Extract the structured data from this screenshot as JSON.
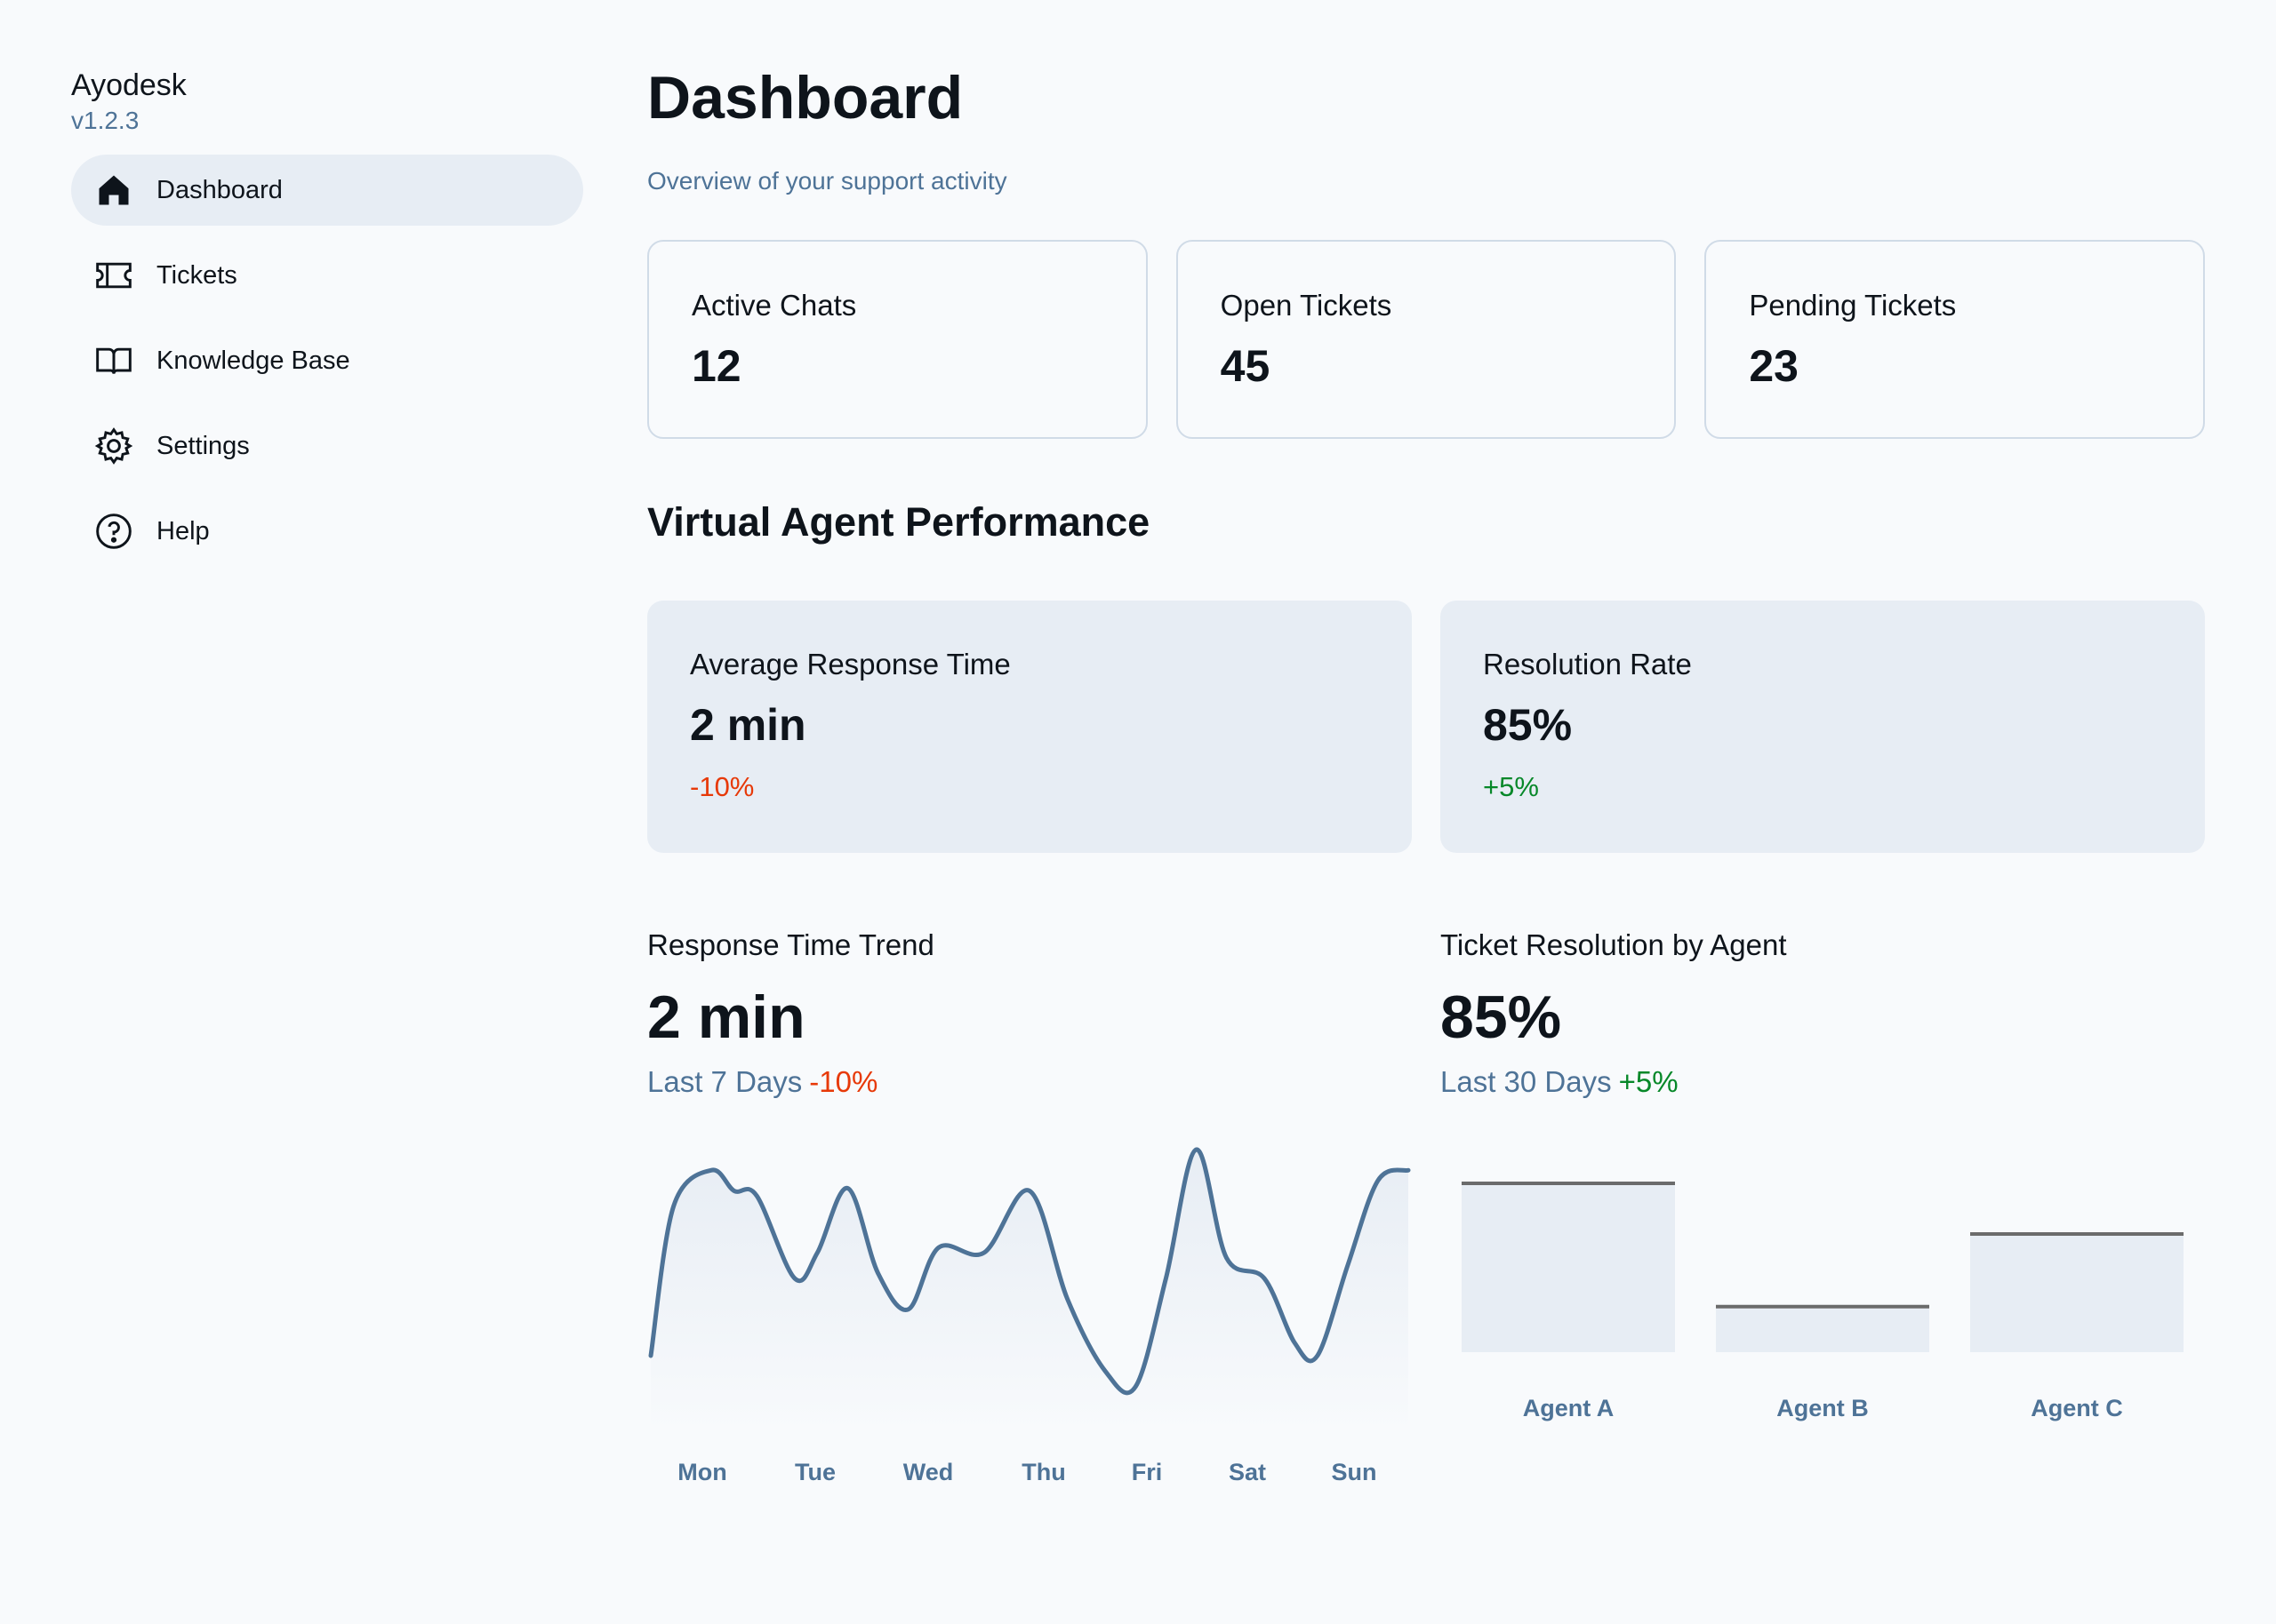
{
  "sidebar": {
    "app_name": "Ayodesk",
    "version": "v1.2.3",
    "items": [
      {
        "label": "Dashboard",
        "icon": "home-icon",
        "active": true
      },
      {
        "label": "Tickets",
        "icon": "ticket-icon",
        "active": false
      },
      {
        "label": "Knowledge Base",
        "icon": "book-icon",
        "active": false
      },
      {
        "label": "Settings",
        "icon": "gear-icon",
        "active": false
      },
      {
        "label": "Help",
        "icon": "help-circle-icon",
        "active": false
      }
    ]
  },
  "header": {
    "title": "Dashboard",
    "subtitle": "Overview of your support activity"
  },
  "stats": [
    {
      "label": "Active Chats",
      "value": "12"
    },
    {
      "label": "Open Tickets",
      "value": "45"
    },
    {
      "label": "Pending Tickets",
      "value": "23"
    }
  ],
  "performance": {
    "section_title": "Virtual Agent Performance",
    "cards": [
      {
        "label": "Average Response Time",
        "value": "2 min",
        "change": "-10%"
      },
      {
        "label": "Resolution Rate",
        "value": "85%",
        "change": "+5%"
      }
    ]
  },
  "trend": {
    "title": "Response Time Trend",
    "value": "2 min",
    "period": "Last 7 Days",
    "change": "-10%"
  },
  "resolution": {
    "title": "Ticket Resolution by Agent",
    "value": "85%",
    "period": "Last 30 Days",
    "change": "+5%"
  },
  "colors": {
    "accent": "#4e7397",
    "negative": "#e73908",
    "positive": "#078829",
    "card_bg": "#e7edf4",
    "border": "#d0dbe7"
  },
  "chart_data": [
    {
      "type": "line",
      "title": "Response Time Trend",
      "categories": [
        "Mon",
        "Tue",
        "Wed",
        "Thu",
        "Fri",
        "Sat",
        "Sun"
      ],
      "x": [
        0,
        0.03,
        0.08,
        0.11,
        0.14,
        0.19,
        0.22,
        0.26,
        0.3,
        0.34,
        0.38,
        0.44,
        0.5,
        0.55,
        0.6,
        0.64,
        0.68,
        0.72,
        0.76,
        0.81,
        0.85,
        0.88,
        0.92,
        0.96,
        1.0
      ],
      "values": [
        20,
        78,
        92,
        84,
        82,
        50,
        60,
        85,
        52,
        38,
        62,
        60,
        84,
        42,
        14,
        8,
        50,
        100,
        58,
        50,
        25,
        20,
        55,
        88,
        92
      ],
      "ylim": [
        0,
        100
      ],
      "note": "Relative shape of the trend line; no numeric axis is shown."
    },
    {
      "type": "bar",
      "title": "Ticket Resolution by Agent",
      "categories": [
        "Agent A",
        "Agent B",
        "Agent C"
      ],
      "values": [
        100,
        27,
        70
      ],
      "ylim": [
        0,
        100
      ],
      "note": "Relative bar heights; no numeric axis is shown."
    }
  ]
}
